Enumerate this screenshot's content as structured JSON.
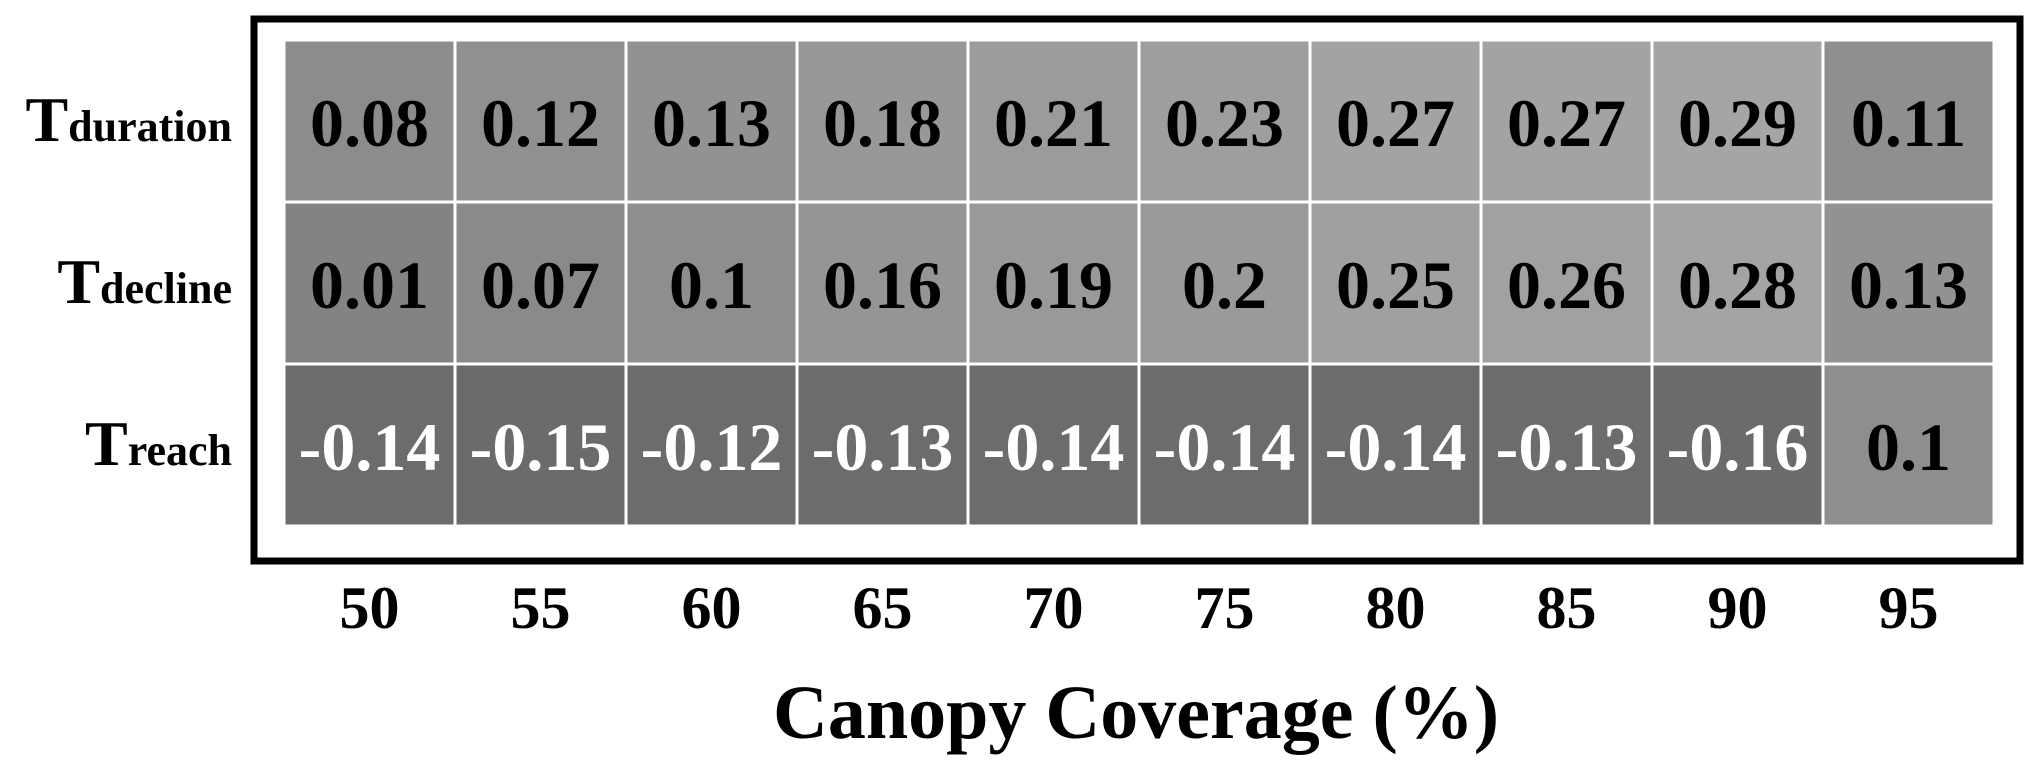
{
  "chart_data": {
    "type": "heatmap",
    "xlabel": "Canopy Coverage (%)",
    "ylabel": "",
    "title": "",
    "x": [
      "50",
      "55",
      "60",
      "65",
      "70",
      "75",
      "80",
      "85",
      "90",
      "95"
    ],
    "rows": [
      {
        "prefix": "T",
        "subscript": "duration",
        "values": [
          0.08,
          0.12,
          0.13,
          0.18,
          0.21,
          0.23,
          0.27,
          0.27,
          0.29,
          0.11
        ]
      },
      {
        "prefix": "T",
        "subscript": "decline",
        "values": [
          0.01,
          0.07,
          0.1,
          0.16,
          0.19,
          0.2,
          0.25,
          0.26,
          0.28,
          0.13
        ]
      },
      {
        "prefix": "T",
        "subscript": "reach",
        "values": [
          -0.14,
          -0.15,
          -0.12,
          -0.13,
          -0.14,
          -0.14,
          -0.14,
          -0.13,
          -0.16,
          0.1
        ]
      }
    ],
    "colormap": "grayscale",
    "grid": true
  },
  "colors": {
    "border": "#000000",
    "cell_divider": "#ffffff",
    "text_positive": "#000000",
    "text_negative": "#ffffff"
  }
}
